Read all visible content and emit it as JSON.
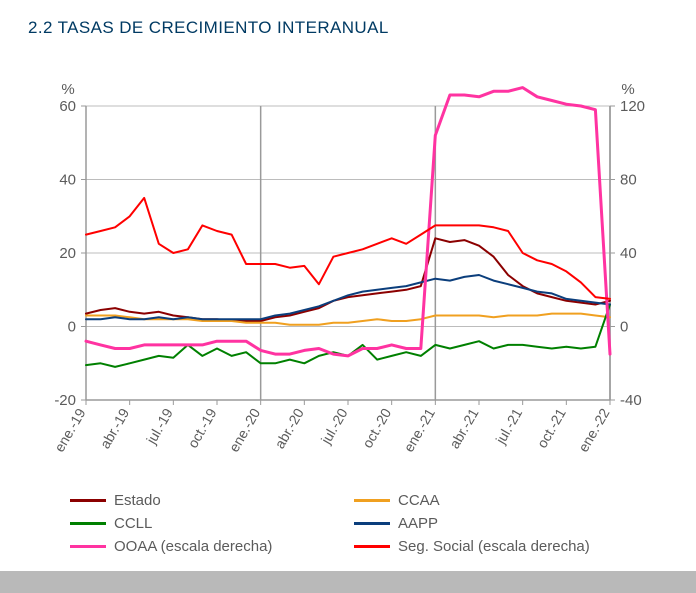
{
  "title": "2.2 TASAS DE CRECIMIENTO INTERANUAL",
  "chart": {
    "type": "line",
    "left_axis": {
      "unit_label": "%",
      "min": -20,
      "max": 60,
      "tick_step": 20,
      "ticks": [
        -20,
        0,
        20,
        40,
        60
      ],
      "label_color": "#5b5b5b",
      "font_size": 15
    },
    "right_axis": {
      "unit_label": "%",
      "min": -40,
      "max": 120,
      "tick_step": 40,
      "ticks": [
        -40,
        0,
        40,
        80,
        120
      ],
      "label_color": "#5b5b5b",
      "font_size": 15
    },
    "x_axis": {
      "labels": [
        "ene.-19",
        "abr.-19",
        "jul.-19",
        "oct.-19",
        "ene.-20",
        "abr.-20",
        "jul.-20",
        "oct.-20",
        "ene.-21",
        "abr.-21",
        "jul.-21",
        "oct.-21",
        "ene.-22"
      ],
      "label_color": "#5b5b5b",
      "font_size": 14,
      "rotation": -60
    },
    "vlines": {
      "indices": [
        12,
        24,
        36
      ],
      "color": "#9a9a9a"
    },
    "months_count": 37,
    "gridline_color": "#bcbcbc",
    "background_color": "#ffffff",
    "axis_line_color": "#9a9a9a",
    "series": [
      {
        "name": "Estado",
        "axis": "left",
        "color": "#8b0000",
        "width": 2,
        "values": [
          3.5,
          4.5,
          5.0,
          4.0,
          3.5,
          4.0,
          3.0,
          2.5,
          2.0,
          2.0,
          1.5,
          1.5,
          1.5,
          2.5,
          3.0,
          4.0,
          5.0,
          7.0,
          8.0,
          8.5,
          9.0,
          9.5,
          10.0,
          11.0,
          24.0,
          23.0,
          23.5,
          22.0,
          19.0,
          14.0,
          11.0,
          9.0,
          8.0,
          7.0,
          6.5,
          6.0,
          7.0
        ]
      },
      {
        "name": "CCAA",
        "axis": "left",
        "color": "#f0a020",
        "width": 2,
        "values": [
          3.0,
          3.0,
          3.0,
          2.5,
          2.0,
          2.0,
          2.0,
          2.0,
          1.5,
          1.5,
          1.5,
          1.0,
          1.0,
          1.0,
          0.5,
          0.5,
          0.5,
          1.0,
          1.0,
          1.5,
          2.0,
          1.5,
          1.5,
          2.0,
          3.0,
          3.0,
          3.0,
          3.0,
          2.5,
          3.0,
          3.0,
          3.0,
          3.5,
          3.5,
          3.5,
          3.0,
          2.5
        ]
      },
      {
        "name": "CCLL",
        "axis": "left",
        "color": "#008000",
        "width": 2,
        "values": [
          -10.5,
          -10.0,
          -11.0,
          -10.0,
          -9.0,
          -8.0,
          -8.5,
          -5.0,
          -8.0,
          -6.0,
          -8.0,
          -7.0,
          -10.0,
          -10.0,
          -9.0,
          -10.0,
          -8.0,
          -7.0,
          -8.0,
          -5.0,
          -9.0,
          -8.0,
          -7.0,
          -8.0,
          -5.0,
          -6.0,
          -5.0,
          -4.0,
          -6.0,
          -5.0,
          -5.0,
          -5.5,
          -6.0,
          -5.5,
          -6.0,
          -5.5,
          6.0
        ]
      },
      {
        "name": "AAPP",
        "axis": "left",
        "color": "#0b3e7c",
        "width": 2,
        "values": [
          2.0,
          2.0,
          2.5,
          2.0,
          2.0,
          2.5,
          2.0,
          2.5,
          2.0,
          2.0,
          2.0,
          2.0,
          2.0,
          3.0,
          3.5,
          4.5,
          5.5,
          7.0,
          8.5,
          9.5,
          10.0,
          10.5,
          11.0,
          12.0,
          13.0,
          12.5,
          13.5,
          14.0,
          12.5,
          11.5,
          10.5,
          9.5,
          9.0,
          7.5,
          7.0,
          6.5,
          6.0
        ]
      },
      {
        "name": "OOAA (escala derecha)",
        "axis": "right",
        "color": "#ff33a1",
        "width": 3,
        "values": [
          -8,
          -10,
          -12,
          -12,
          -10,
          -10,
          -10,
          -10,
          -10,
          -8,
          -8,
          -8,
          -13,
          -15,
          -15,
          -13,
          -12,
          -15,
          -16,
          -12,
          -12,
          -10,
          -12,
          -12,
          104,
          126,
          126,
          125,
          128,
          128,
          130,
          125,
          123,
          121,
          120,
          118,
          -15
        ]
      },
      {
        "name": "Seg. Social (escala derecha)",
        "axis": "right",
        "color": "#ff0000",
        "width": 2,
        "values": [
          50,
          52,
          54,
          60,
          70,
          45,
          40,
          42,
          55,
          52,
          50,
          34,
          34,
          34,
          32,
          33,
          23,
          38,
          40,
          42,
          45,
          48,
          45,
          50,
          55,
          55,
          55,
          55,
          54,
          52,
          40,
          36,
          34,
          30,
          24,
          16,
          15
        ]
      }
    ]
  },
  "legend": {
    "font_size": 15,
    "text_color": "#5b5b5b",
    "items": [
      {
        "label": "Estado",
        "color": "#8b0000"
      },
      {
        "label": "CCAA",
        "color": "#f0a020"
      },
      {
        "label": "CCLL",
        "color": "#008000"
      },
      {
        "label": "AAPP",
        "color": "#0b3e7c"
      },
      {
        "label": "OOAA (escala derecha)",
        "color": "#ff33a1"
      },
      {
        "label": "Seg. Social (escala derecha)",
        "color": "#ff0000"
      }
    ]
  }
}
